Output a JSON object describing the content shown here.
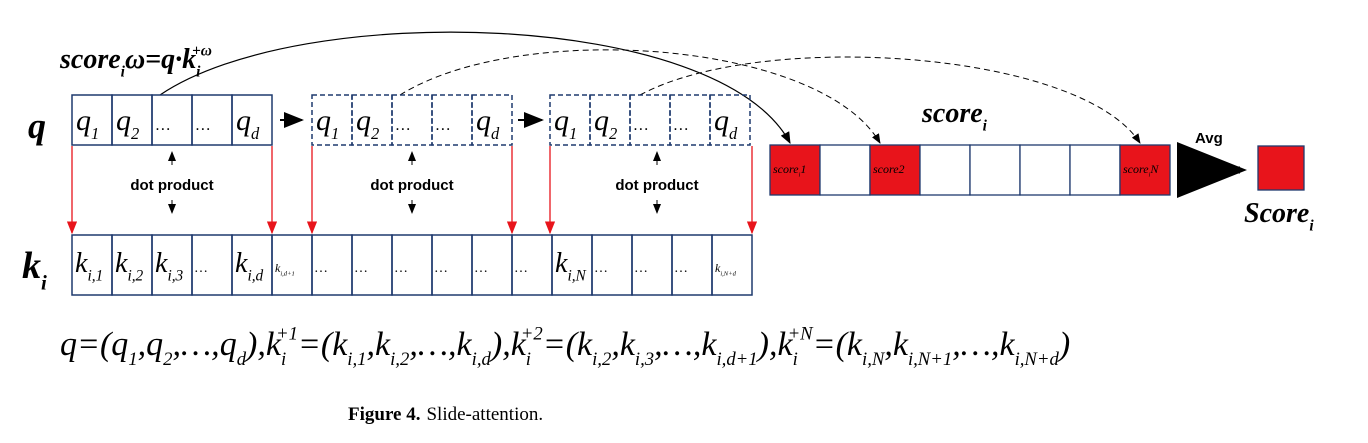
{
  "top_formula": [
    {
      "t": "score",
      "sub": "i"
    },
    {
      "t": "ω=q·k",
      "sub": "i",
      "sup": "+ω"
    }
  ],
  "q_row": {
    "label": {
      "t": "q"
    },
    "groups": [
      [
        {
          "t": "q",
          "sub": "1"
        },
        {
          "t": "q",
          "sub": "2"
        },
        {
          "t": "…"
        },
        {
          "t": "…"
        },
        {
          "t": "q",
          "sub": "d"
        }
      ],
      [
        {
          "t": "q",
          "sub": "1"
        },
        {
          "t": "q",
          "sub": "2"
        },
        {
          "t": "…"
        },
        {
          "t": "…"
        },
        {
          "t": "q",
          "sub": "d"
        }
      ],
      [
        {
          "t": "q",
          "sub": "1"
        },
        {
          "t": "q",
          "sub": "2"
        },
        {
          "t": "…"
        },
        {
          "t": "…"
        },
        {
          "t": "q",
          "sub": "d"
        }
      ]
    ]
  },
  "dot_labels": [
    "dot product",
    "dot product",
    "dot product"
  ],
  "k_row": {
    "label": {
      "t": "k",
      "sub": "i"
    },
    "cells": [
      {
        "t": "k",
        "sub": "i,1"
      },
      {
        "t": "k",
        "sub": "i,2"
      },
      {
        "t": "k",
        "sub": "i,3"
      },
      {
        "t": "…"
      },
      {
        "t": "k",
        "sub": "i,d"
      },
      {
        "t": "k",
        "sub": "i,d+1"
      },
      {
        "t": "…"
      },
      {
        "t": "…"
      },
      {
        "t": "…"
      },
      {
        "t": "…"
      },
      {
        "t": "…"
      },
      {
        "t": "…"
      },
      {
        "t": "k",
        "sub": "i,N"
      },
      {
        "t": "…"
      },
      {
        "t": "…"
      },
      {
        "t": "…"
      },
      {
        "t": "k",
        "sub": "i,N+d"
      }
    ]
  },
  "score_row": {
    "title": {
      "t": "score",
      "sub": "i"
    },
    "cells": [
      {
        "t": "score",
        "sub": "i",
        "tail": "1"
      },
      null,
      {
        "t": "score",
        "tail": "2"
      },
      null,
      null,
      null,
      null,
      {
        "t": "score",
        "sub": "i",
        "tail": "N"
      }
    ],
    "color": "#e8141b"
  },
  "avg": {
    "label": "Avg",
    "result": {
      "t": "Score",
      "sub": "i"
    }
  },
  "bottom_formula": [
    {
      "t": "q"
    },
    {
      "t": "=("
    },
    {
      "t": "q",
      "sub": "1"
    },
    {
      "t": ","
    },
    {
      "t": "q",
      "sub": "2"
    },
    {
      "t": ",…,"
    },
    {
      "t": "q",
      "sub": "d"
    },
    {
      "t": ")"
    },
    {
      "t": ","
    },
    {
      "t": "k",
      "sub": "i",
      "sup": "+1"
    },
    {
      "t": "=("
    },
    {
      "t": "k",
      "sub": "i,1"
    },
    {
      "t": ","
    },
    {
      "t": "k",
      "sub": "i,2"
    },
    {
      "t": ",…,"
    },
    {
      "t": "k",
      "sub": "i,d"
    },
    {
      "t": ")"
    },
    {
      "t": ","
    },
    {
      "t": "k",
      "sub": "i",
      "sup": "+2"
    },
    {
      "t": "=("
    },
    {
      "t": "k",
      "sub": "i,2"
    },
    {
      "t": ","
    },
    {
      "t": "k",
      "sub": "i,3"
    },
    {
      "t": ",…,"
    },
    {
      "t": "k",
      "sub": "i,d+1"
    },
    {
      "t": ")"
    },
    {
      "t": ","
    },
    {
      "t": "k",
      "sub": "i",
      "sup": "+N"
    },
    {
      "t": "=("
    },
    {
      "t": "k",
      "sub": "i,N"
    },
    {
      "t": ","
    },
    {
      "t": "k",
      "sub": "i,N+1"
    },
    {
      "t": ",…,"
    },
    {
      "t": "k",
      "sub": "i,N+d"
    },
    {
      "t": ")"
    }
  ],
  "caption": {
    "label": "Figure 4.",
    "text": "Slide-attention."
  }
}
